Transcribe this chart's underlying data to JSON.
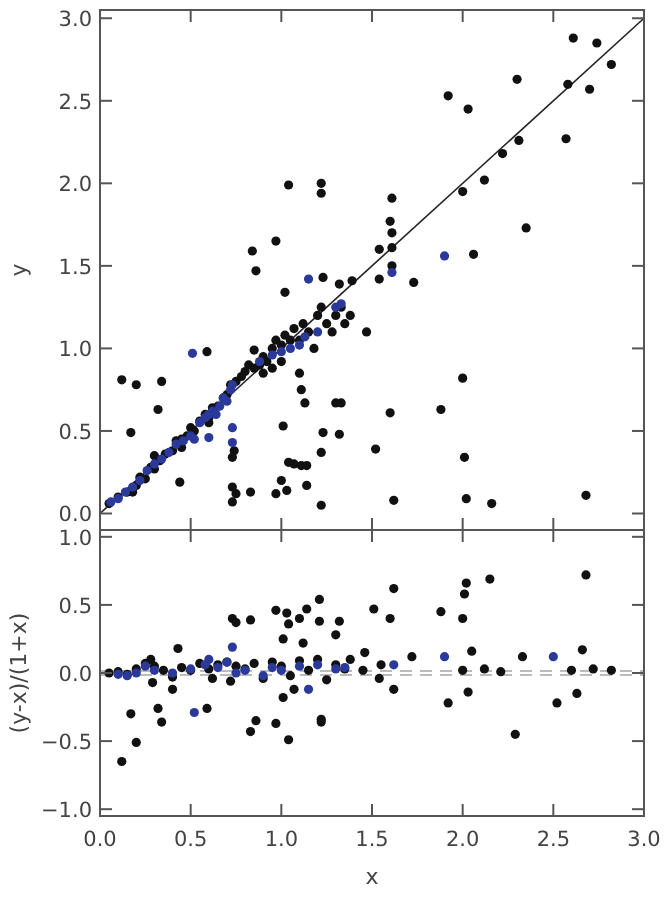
{
  "chart_data": [
    {
      "type": "scatter",
      "ylabel": "y",
      "marker": "circle",
      "tick_labels": "y",
      "xlim": [
        0,
        3
      ],
      "xticks": [
        0,
        0.5,
        1,
        1.5,
        2,
        2.5,
        3
      ],
      "ylim": [
        -0.1,
        3.05
      ],
      "yticks": [
        {
          "value": 0,
          "label": "0.0"
        },
        {
          "value": 0.5,
          "label": "0.5"
        },
        {
          "value": 1,
          "label": "1.0"
        },
        {
          "value": 1.5,
          "label": "1.5"
        },
        {
          "value": 2,
          "label": "2.0"
        },
        {
          "value": 2.5,
          "label": "2.5"
        },
        {
          "value": 3,
          "label": "3.0"
        }
      ],
      "series": [
        {
          "type": "line",
          "marker": "none",
          "color": "#222222",
          "x": [
            0,
            3
          ],
          "values": [
            0,
            3
          ]
        },
        {
          "color": "#111111",
          "x": [
            2.61,
            2.74,
            2.82,
            2.58,
            2.7,
            2.57,
            2.3,
            2.31,
            2.22,
            2.12,
            2,
            1.92,
            2.03,
            2.35,
            1.04,
            1.22,
            1.22,
            1.61,
            1.6,
            1.61,
            1.61,
            1.54,
            0.97,
            0.84,
            2.06,
            0.86,
            1.02,
            1.23,
            1.32,
            1.39,
            1.54,
            1.61,
            1.73,
            1.47,
            2,
            1.88,
            1.6,
            1.52,
            2.01,
            2.02,
            2.16,
            2.68,
            1.62,
            1.22,
            1.32,
            1.3,
            1.33,
            1.23,
            1.13,
            1.01,
            1.11,
            1.04,
            1.07,
            1.11,
            1.14,
            1,
            1.14,
            1.22,
            1.03,
            0.97,
            0.83,
            0.73,
            0.75,
            0.73,
            0.73,
            0.74,
            0.44,
            0.17,
            0.12,
            0.2,
            0.34,
            0.32,
            0.59,
            0.85,
            0.05,
            0.1,
            0.15,
            0.2,
            0.22,
            0.25,
            0.28,
            0.3,
            0.33,
            0.36,
            0.4,
            0.42,
            0.45,
            0.48,
            0.5,
            0.52,
            0.55,
            0.58,
            0.6,
            0.62,
            0.65,
            0.68,
            0.7,
            0.72,
            0.75,
            0.78,
            0.8,
            0.82,
            0.85,
            0.88,
            0.9,
            0.92,
            0.95,
            0.97,
            1,
            1.02,
            1.05,
            1.07,
            1.1,
            1.12,
            1.15,
            1.18,
            1.2,
            1.22,
            1.25,
            1.28,
            1.3,
            1.33,
            1.35,
            1.38,
            1,
            0.95,
            0.9,
            1.1,
            0.6,
            0.45,
            0.3,
            0.18
          ],
          "values": [
            2.88,
            2.85,
            2.72,
            2.6,
            2.57,
            2.27,
            2.63,
            2.26,
            2.18,
            2.02,
            1.95,
            2.53,
            2.45,
            1.73,
            1.99,
            2,
            1.94,
            1.91,
            1.77,
            1.7,
            1.61,
            1.6,
            1.65,
            1.59,
            1.57,
            1.47,
            1.34,
            1.43,
            1.39,
            1.41,
            1.42,
            1.5,
            1.4,
            1.1,
            0.82,
            0.63,
            0.61,
            0.39,
            0.34,
            0.09,
            0.06,
            0.11,
            0.08,
            0.05,
            0.48,
            0.67,
            0.67,
            0.49,
            0.67,
            0.53,
            0.75,
            0.31,
            0.3,
            0.29,
            0.29,
            0.2,
            0.17,
            0.37,
            0.14,
            0.12,
            0.13,
            0.16,
            0.12,
            0.07,
            0.34,
            0.38,
            0.19,
            0.49,
            0.81,
            0.78,
            0.8,
            0.63,
            0.98,
            0.99,
            0.06,
            0.1,
            0.13,
            0.17,
            0.22,
            0.21,
            0.28,
            0.27,
            0.32,
            0.36,
            0.38,
            0.44,
            0.45,
            0.47,
            0.52,
            0.5,
            0.56,
            0.6,
            0.58,
            0.64,
            0.65,
            0.7,
            0.72,
            0.78,
            0.8,
            0.83,
            0.86,
            0.9,
            0.88,
            0.9,
            0.95,
            0.92,
            1,
            1.05,
            1.02,
            1.08,
            1.05,
            1.12,
            1.05,
            1.15,
            1.1,
            1,
            1.2,
            1.25,
            1.15,
            1.1,
            1.2,
            1.25,
            1.15,
            1.2,
            0.92,
            0.88,
            0.85,
            0.85,
            0.55,
            0.4,
            0.35,
            0.13
          ]
        },
        {
          "color": "#2b3a9a",
          "x": [
            0.06,
            0.1,
            0.14,
            0.18,
            0.22,
            0.26,
            0.3,
            0.34,
            0.38,
            0.42,
            0.46,
            0.5,
            0.52,
            0.55,
            0.58,
            0.6,
            0.62,
            0.64,
            0.66,
            0.68,
            0.7,
            0.72,
            0.73,
            0.73,
            0.73,
            0.6,
            0.88,
            0.95,
            1,
            1.05,
            1.1,
            1.13,
            1.2,
            1.3,
            1.33,
            1.15,
            0.51,
            1.61,
            1.9
          ],
          "values": [
            0.07,
            0.09,
            0.13,
            0.16,
            0.2,
            0.26,
            0.3,
            0.33,
            0.37,
            0.42,
            0.44,
            0.47,
            0.45,
            0.55,
            0.58,
            0.6,
            0.62,
            0.6,
            0.65,
            0.7,
            0.68,
            0.75,
            0.78,
            0.52,
            0.43,
            0.46,
            0.92,
            0.96,
            0.98,
            1,
            1.02,
            1.07,
            1.1,
            1.25,
            1.27,
            1.42,
            0.97,
            1.46,
            1.56
          ]
        }
      ]
    },
    {
      "type": "scatter",
      "xlabel": "x",
      "ylabel": "(y-x)/(1+x)",
      "marker": "circle",
      "xlim": [
        0,
        3
      ],
      "xticks": [
        {
          "value": 0,
          "label": "0.0"
        },
        {
          "value": 0.5,
          "label": "0.5"
        },
        {
          "value": 1,
          "label": "1.0"
        },
        {
          "value": 1.5,
          "label": "1.5"
        },
        {
          "value": 2,
          "label": "2.0"
        },
        {
          "value": 2.5,
          "label": "2.5"
        },
        {
          "value": 3,
          "label": "3.0"
        }
      ],
      "ylim": [
        -1.05,
        1.05
      ],
      "yticks": [
        {
          "value": -1,
          "label": "−1.0"
        },
        {
          "value": -0.5,
          "label": "−0.5"
        },
        {
          "value": 0,
          "label": "0.0"
        },
        {
          "value": 0.5,
          "label": "0.5"
        },
        {
          "value": 1,
          "label": "1.0"
        }
      ],
      "ref_lines": [
        {
          "axis": "y",
          "value": 0.015,
          "color": "#bbbbbb",
          "line_style": "dashed"
        },
        {
          "axis": "y",
          "value": -0.015,
          "color": "#bbbbbb",
          "line_style": "dashed"
        }
      ],
      "series": [
        {
          "color": "#111111",
          "x": [
            2.68,
            2.15,
            2.02,
            2.01,
            1.88,
            2,
            1.62,
            1.6,
            1.51,
            1.46,
            1.21,
            1.14,
            1.03,
            0.97,
            1.04,
            1.1,
            1.32,
            1.3,
            1.21,
            1.01,
            1.12,
            0.73,
            0.75,
            0.83,
            0.43,
            1.72,
            2.05,
            2.33,
            2.66,
            2.12,
            2.21,
            2,
            2.6,
            2.72,
            2.82,
            1.92,
            2.03,
            2.29,
            2.52,
            2.63,
            1.62,
            1.54,
            0.12,
            0.2,
            0.17,
            0.32,
            0.34,
            0.59,
            0.83,
            0.86,
            0.97,
            1.04,
            1.22,
            1.22,
            1.01,
            1.07,
            0.29,
            0.4,
            0.05,
            0.1,
            0.15,
            0.2,
            0.25,
            0.28,
            0.3,
            0.35,
            0.4,
            0.45,
            0.5,
            0.55,
            0.6,
            0.62,
            0.65,
            0.7,
            0.72,
            0.75,
            0.8,
            0.85,
            0.9,
            0.95,
            1,
            1.05,
            1.1,
            1.15,
            1.2,
            1.25,
            1.3,
            1.35,
            1.38,
            1.45,
            1.55
          ],
          "values": [
            0.72,
            0.69,
            0.66,
            0.58,
            0.45,
            0.4,
            0.62,
            0.4,
            0.47,
            0.15,
            0.54,
            0.47,
            0.44,
            0.46,
            0.36,
            0.4,
            0.38,
            0.28,
            0.38,
            0.25,
            0.22,
            0.4,
            0.37,
            0.39,
            0.18,
            0.12,
            0.16,
            0.12,
            0.17,
            0.03,
            0.01,
            0.02,
            0.02,
            0.03,
            0.02,
            -0.22,
            -0.14,
            -0.45,
            -0.22,
            -0.15,
            -0.12,
            -0.04,
            -0.65,
            -0.51,
            -0.3,
            -0.26,
            -0.36,
            -0.26,
            -0.43,
            -0.35,
            -0.37,
            -0.49,
            -0.34,
            -0.36,
            -0.18,
            -0.12,
            -0.07,
            -0.12,
            0,
            0.01,
            -0.01,
            0.03,
            0.07,
            0.1,
            0.05,
            0.02,
            -0.03,
            0.04,
            0.02,
            0.07,
            0.03,
            -0.04,
            0.06,
            0.08,
            -0.06,
            0.05,
            0.03,
            0.07,
            -0.04,
            0.08,
            0.05,
            -0.02,
            0.09,
            0.02,
            0.1,
            -0.05,
            0.06,
            0.03,
            0.1,
            0.02,
            0.06
          ]
        },
        {
          "color": "#2b3a9a",
          "x": [
            0.1,
            0.15,
            0.2,
            0.25,
            0.3,
            0.4,
            0.5,
            0.52,
            0.58,
            0.6,
            0.65,
            0.7,
            0.73,
            0.75,
            0.8,
            0.9,
            0.95,
            1,
            1.1,
            1.15,
            1.2,
            1.3,
            1.35,
            1.62,
            1.9,
            2.5
          ],
          "values": [
            -0.01,
            -0.02,
            0,
            0.05,
            0.02,
            0,
            0.03,
            -0.29,
            0.06,
            0.1,
            0.04,
            0.08,
            0.19,
            0,
            0.02,
            -0.02,
            0.04,
            0.02,
            0.05,
            -0.12,
            0.06,
            0.03,
            0.04,
            0.06,
            0.12,
            0.12
          ]
        }
      ]
    }
  ]
}
